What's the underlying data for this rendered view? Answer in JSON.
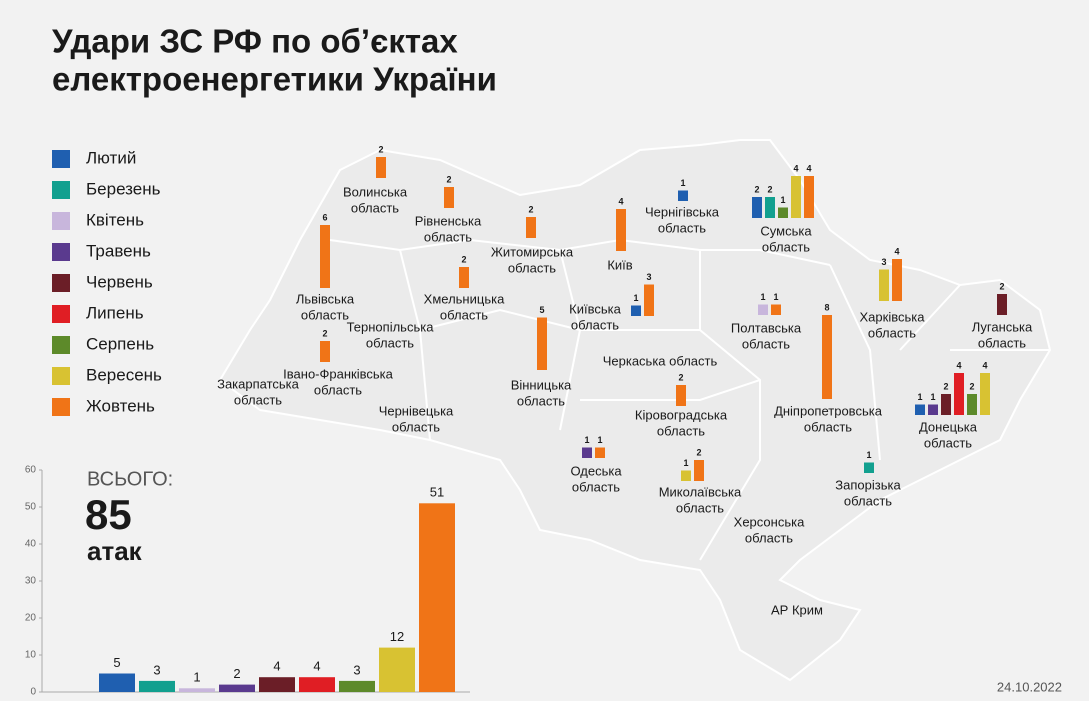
{
  "title": [
    "Удари ЗС РФ по об’єктах",
    "електроенергетики України"
  ],
  "chart_data": {
    "type": "bar",
    "series": [
      {
        "name": "Лютий",
        "color": "#1f5fb0",
        "values": [
          5
        ]
      },
      {
        "name": "Березень",
        "color": "#12a08f",
        "values": [
          3
        ]
      },
      {
        "name": "Квітень",
        "color": "#c8b6dc",
        "values": [
          1
        ]
      },
      {
        "name": "Травень",
        "color": "#5a3a8e",
        "values": [
          2
        ]
      },
      {
        "name": "Червень",
        "color": "#6b1e27",
        "values": [
          4
        ]
      },
      {
        "name": "Липень",
        "color": "#e01e24",
        "values": [
          4
        ]
      },
      {
        "name": "Серпень",
        "color": "#5d8a2a",
        "values": [
          3
        ]
      },
      {
        "name": "Вересень",
        "color": "#d8c232",
        "values": [
          12
        ]
      },
      {
        "name": "Жовтень",
        "color": "#f07417",
        "values": [
          51
        ]
      }
    ],
    "ylim": [
      0,
      60
    ],
    "yticks": [
      0,
      10,
      20,
      30,
      40,
      50,
      60
    ]
  },
  "total_label": "ВСЬОГО:",
  "total": 85,
  "total_unit": "атак",
  "regions": [
    {
      "name": [
        "Волинська",
        "область"
      ],
      "values": [
        null,
        null,
        null,
        null,
        null,
        null,
        null,
        null,
        2
      ]
    },
    {
      "name": [
        "Рівненська",
        "область"
      ],
      "values": [
        null,
        null,
        null,
        null,
        null,
        null,
        null,
        null,
        2
      ]
    },
    {
      "name": [
        "Житомирська",
        "область"
      ],
      "values": [
        null,
        null,
        null,
        null,
        null,
        null,
        null,
        null,
        2
      ]
    },
    {
      "name": [
        "Київ"
      ],
      "values": [
        null,
        null,
        null,
        null,
        null,
        null,
        null,
        null,
        4
      ]
    },
    {
      "name": [
        "Чернігівська",
        "область"
      ],
      "values": [
        1,
        null,
        null,
        null,
        null,
        null,
        null,
        null,
        null
      ]
    },
    {
      "name": [
        "Сумська",
        "область"
      ],
      "values": [
        2,
        2,
        null,
        null,
        null,
        null,
        1,
        4,
        4
      ]
    },
    {
      "name": [
        "Львівська",
        "область"
      ],
      "values": [
        null,
        null,
        null,
        null,
        null,
        null,
        null,
        null,
        6
      ]
    },
    {
      "name": [
        "Хмельницька",
        "область"
      ],
      "values": [
        null,
        null,
        null,
        null,
        null,
        null,
        null,
        null,
        2
      ]
    },
    {
      "name": [
        "Київська",
        "область"
      ],
      "values": [
        1,
        null,
        null,
        null,
        null,
        null,
        null,
        null,
        3
      ]
    },
    {
      "name": [
        "Тернопільська",
        "область"
      ],
      "values": [
        null,
        null,
        null,
        null,
        null,
        null,
        null,
        null,
        null
      ]
    },
    {
      "name": [
        "Вінницька",
        "область"
      ],
      "values": [
        null,
        null,
        null,
        null,
        null,
        null,
        null,
        null,
        5
      ]
    },
    {
      "name": [
        "Івано-Франківська",
        "область"
      ],
      "values": [
        null,
        null,
        null,
        null,
        null,
        null,
        null,
        null,
        2
      ]
    },
    {
      "name": [
        "Закарпатська",
        "область"
      ],
      "values": [
        null,
        null,
        null,
        null,
        null,
        null,
        null,
        null,
        null
      ]
    },
    {
      "name": [
        "Чернівецька",
        "область"
      ],
      "values": [
        null,
        null,
        null,
        null,
        null,
        null,
        null,
        null,
        null
      ]
    },
    {
      "name": [
        "Черкаська область"
      ],
      "values": [
        null,
        null,
        null,
        null,
        null,
        null,
        null,
        null,
        null
      ]
    },
    {
      "name": [
        "Полтавська",
        "область"
      ],
      "values": [
        null,
        null,
        1,
        null,
        null,
        null,
        null,
        null,
        1
      ]
    },
    {
      "name": [
        "Харківська",
        "область"
      ],
      "values": [
        null,
        null,
        null,
        null,
        null,
        null,
        null,
        3,
        4
      ]
    },
    {
      "name": [
        "Луганська",
        "область"
      ],
      "values": [
        null,
        null,
        null,
        null,
        2,
        null,
        null,
        null,
        null
      ]
    },
    {
      "name": [
        "Дніпропетровська",
        "область"
      ],
      "values": [
        null,
        null,
        null,
        null,
        null,
        null,
        null,
        null,
        8
      ]
    },
    {
      "name": [
        "Кіровоградська",
        "область"
      ],
      "values": [
        null,
        null,
        null,
        null,
        null,
        null,
        null,
        null,
        2
      ]
    },
    {
      "name": [
        "Донецька",
        "область"
      ],
      "values": [
        1,
        null,
        null,
        1,
        2,
        4,
        2,
        4,
        null
      ]
    },
    {
      "name": [
        "Одеська",
        "область"
      ],
      "values": [
        null,
        null,
        null,
        1,
        null,
        null,
        null,
        null,
        1
      ]
    },
    {
      "name": [
        "Миколаївська",
        "область"
      ],
      "values": [
        null,
        null,
        null,
        null,
        null,
        null,
        null,
        1,
        2
      ]
    },
    {
      "name": [
        "Запорізька",
        "область"
      ],
      "values": [
        null,
        1,
        null,
        null,
        null,
        null,
        null,
        null,
        null
      ]
    },
    {
      "name": [
        "Херсонська",
        "область"
      ],
      "values": [
        null,
        null,
        null,
        null,
        null,
        null,
        null,
        null,
        null
      ]
    },
    {
      "name": [
        "АР Крим"
      ],
      "values": [
        null,
        null,
        null,
        null,
        null,
        null,
        null,
        null,
        null
      ]
    }
  ],
  "date": "24.10.2022"
}
